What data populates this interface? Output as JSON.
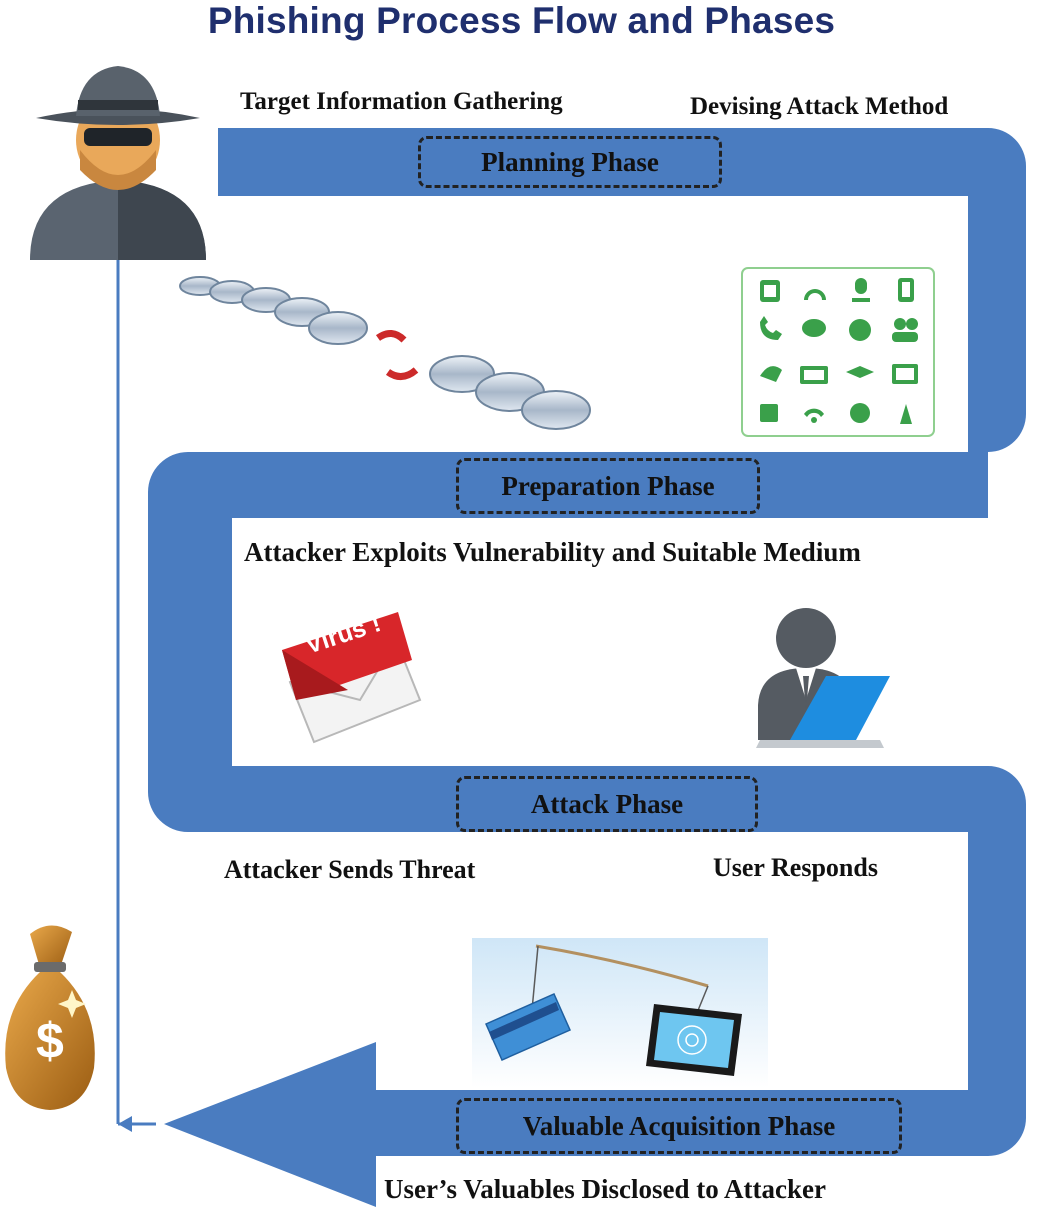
{
  "title": "Phishing Process Flow and Phases",
  "phases": {
    "planning": "Planning Phase",
    "preparation": "Preparation Phase",
    "attack": "Attack Phase",
    "acquisition": "Valuable Acquisition Phase"
  },
  "steps": {
    "target_info": "Target Information Gathering",
    "devising_method": "Devising Attack Method",
    "exploits": "Attacker Exploits Vulnerability and Suitable Medium",
    "sends_threat": "Attacker Sends Threat",
    "user_responds": "User Responds",
    "valuables_disclosed": "User’s Valuables Disclosed to Attacker"
  },
  "virus_label": "Virus !",
  "bag_symbol": "$",
  "icons": [
    "hacker-icon",
    "broken-chain-icon",
    "communication-media-grid-icon",
    "virus-email-icon",
    "user-at-laptop-icon",
    "phishing-card-hook-icon",
    "money-bag-icon"
  ],
  "colors": {
    "flow": "#4a7cc0",
    "title": "#1f2f6e",
    "grid_icons": "#3aa04a",
    "virus_red": "#d8262a",
    "bag": "#b8761c"
  }
}
